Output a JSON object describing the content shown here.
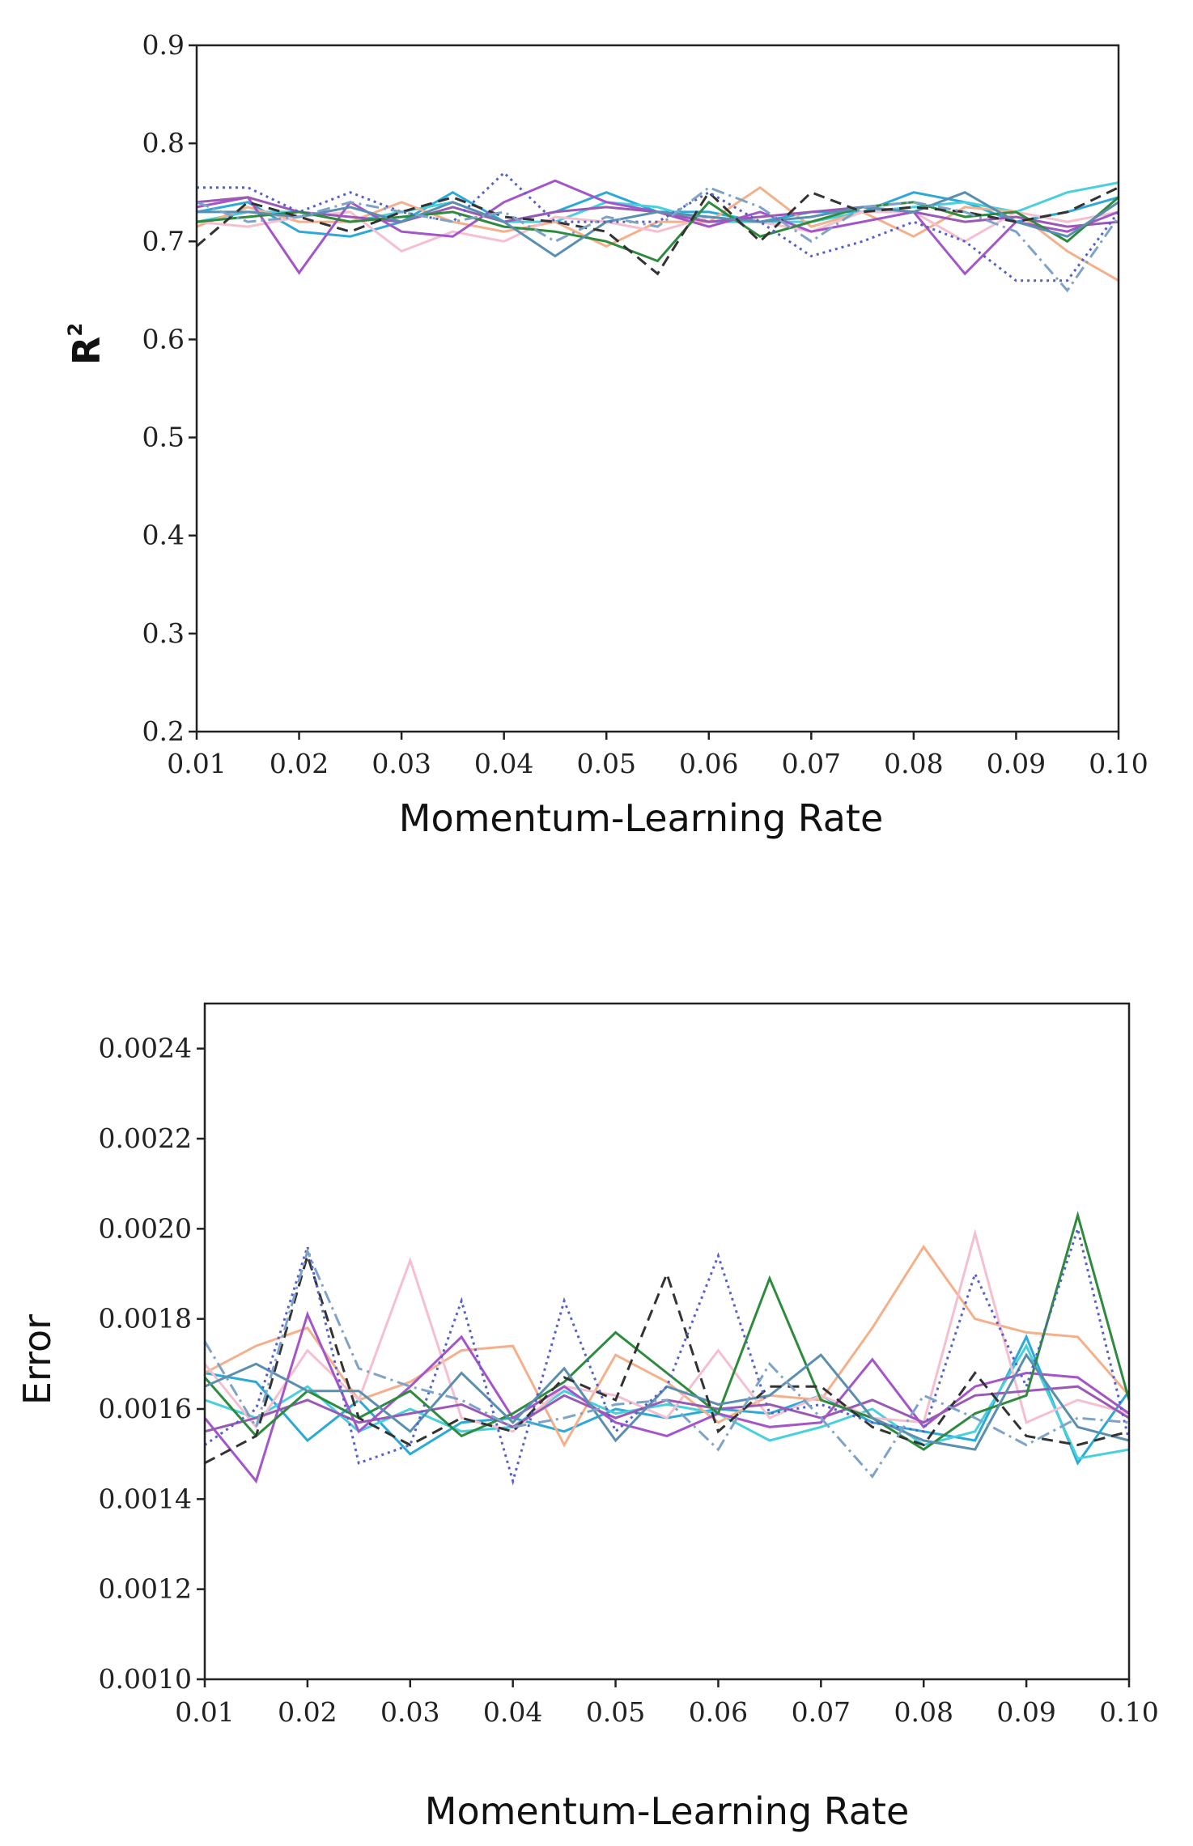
{
  "chart_data": [
    {
      "type": "line",
      "title": "",
      "xlabel": "Momentum-Learning Rate",
      "ylabel": "R",
      "ylabel_superscript": "2",
      "xlim": [
        0.01,
        0.1
      ],
      "ylim": [
        0.2,
        0.9
      ],
      "x_ticks": [
        "0.01",
        "0.02",
        "0.03",
        "0.04",
        "0.05",
        "0.06",
        "0.07",
        "0.08",
        "0.09",
        "0.10"
      ],
      "y_ticks": [
        "0.2",
        "0.3",
        "0.4",
        "0.5",
        "0.6",
        "0.7",
        "0.8",
        "0.9"
      ],
      "grid": false,
      "legend": "none",
      "x": [
        0.01,
        0.015,
        0.02,
        0.025,
        0.03,
        0.035,
        0.04,
        0.045,
        0.05,
        0.055,
        0.06,
        0.065,
        0.07,
        0.075,
        0.08,
        0.085,
        0.09,
        0.095,
        0.1
      ],
      "series": [
        {
          "color": "#2ca9d6",
          "dash": "solid",
          "values": [
            0.73,
            0.74,
            0.71,
            0.705,
            0.72,
            0.75,
            0.72,
            0.73,
            0.75,
            0.73,
            0.73,
            0.72,
            0.73,
            0.73,
            0.75,
            0.74,
            0.72,
            0.73,
            0.745
          ]
        },
        {
          "color": "#48d0dc",
          "dash": "solid",
          "values": [
            0.72,
            0.73,
            0.73,
            0.72,
            0.73,
            0.74,
            0.72,
            0.72,
            0.74,
            0.735,
            0.72,
            0.72,
            0.72,
            0.73,
            0.735,
            0.74,
            0.73,
            0.75,
            0.76
          ]
        },
        {
          "color": "#f4b08a",
          "dash": "solid",
          "values": [
            0.715,
            0.735,
            0.72,
            0.72,
            0.74,
            0.72,
            0.71,
            0.72,
            0.695,
            0.72,
            0.72,
            0.755,
            0.715,
            0.73,
            0.705,
            0.735,
            0.73,
            0.69,
            0.66
          ]
        },
        {
          "color": "#f6bfcf",
          "dash": "solid",
          "values": [
            0.72,
            0.715,
            0.725,
            0.73,
            0.69,
            0.71,
            0.7,
            0.725,
            0.72,
            0.71,
            0.725,
            0.72,
            0.71,
            0.73,
            0.73,
            0.7,
            0.73,
            0.72,
            0.73
          ]
        },
        {
          "color": "#a455c9",
          "dash": "solid",
          "values": [
            0.735,
            0.745,
            0.668,
            0.74,
            0.71,
            0.705,
            0.74,
            0.762,
            0.74,
            0.73,
            0.715,
            0.73,
            0.71,
            0.72,
            0.73,
            0.667,
            0.72,
            0.71,
            0.73
          ]
        },
        {
          "color": "#9b59b6",
          "dash": "solid",
          "values": [
            0.74,
            0.745,
            0.73,
            0.725,
            0.72,
            0.735,
            0.72,
            0.73,
            0.735,
            0.73,
            0.72,
            0.725,
            0.73,
            0.735,
            0.73,
            0.72,
            0.725,
            0.715,
            0.72
          ]
        },
        {
          "color": "#2e8b3e",
          "dash": "solid",
          "values": [
            0.72,
            0.725,
            0.73,
            0.72,
            0.725,
            0.73,
            0.715,
            0.71,
            0.7,
            0.68,
            0.74,
            0.705,
            0.72,
            0.735,
            0.74,
            0.725,
            0.73,
            0.7,
            0.745
          ]
        },
        {
          "color": "#5b8fb0",
          "dash": "solid",
          "values": [
            0.73,
            0.73,
            0.725,
            0.735,
            0.72,
            0.74,
            0.72,
            0.685,
            0.72,
            0.73,
            0.725,
            0.72,
            0.725,
            0.735,
            0.73,
            0.75,
            0.72,
            0.705,
            0.74
          ]
        },
        {
          "color": "#333333",
          "dash": "dashed",
          "values": [
            0.695,
            0.74,
            0.725,
            0.71,
            0.73,
            0.745,
            0.725,
            0.72,
            0.71,
            0.667,
            0.75,
            0.7,
            0.75,
            0.73,
            0.735,
            0.73,
            0.72,
            0.73,
            0.755
          ]
        },
        {
          "color": "#5560c8",
          "dash": "dotted",
          "values": [
            0.755,
            0.755,
            0.73,
            0.75,
            0.73,
            0.72,
            0.77,
            0.72,
            0.72,
            0.72,
            0.75,
            0.72,
            0.685,
            0.7,
            0.72,
            0.7,
            0.66,
            0.66,
            0.73
          ]
        },
        {
          "color": "#7fa3c6",
          "dash": "dashdot",
          "values": [
            0.74,
            0.72,
            0.725,
            0.74,
            0.73,
            0.72,
            0.73,
            0.7,
            0.725,
            0.715,
            0.755,
            0.735,
            0.7,
            0.735,
            0.74,
            0.73,
            0.71,
            0.65,
            0.725
          ]
        }
      ]
    },
    {
      "type": "line",
      "title": "",
      "xlabel": "Momentum-Learning Rate",
      "ylabel": "Error",
      "xlim": [
        0.01,
        0.1
      ],
      "ylim": [
        0.001,
        0.0025
      ],
      "x_ticks": [
        "0.01",
        "0.02",
        "0.03",
        "0.04",
        "0.05",
        "0.06",
        "0.07",
        "0.08",
        "0.09",
        "0.10"
      ],
      "y_ticks": [
        "0.0010",
        "0.0012",
        "0.0014",
        "0.0016",
        "0.0018",
        "0.0020",
        "0.0022",
        "0.0024"
      ],
      "grid": false,
      "legend": "none",
      "x": [
        0.01,
        0.015,
        0.02,
        0.025,
        0.03,
        0.035,
        0.04,
        0.045,
        0.05,
        0.055,
        0.06,
        0.065,
        0.07,
        0.075,
        0.08,
        0.085,
        0.09,
        0.095,
        0.1
      ],
      "series": [
        {
          "color": "#2ca9d6",
          "dash": "solid",
          "values": [
            0.00168,
            0.00166,
            0.00153,
            0.00162,
            0.0015,
            0.00157,
            0.00158,
            0.00155,
            0.0016,
            0.00158,
            0.0016,
            0.00159,
            0.00163,
            0.00157,
            0.00155,
            0.00153,
            0.00176,
            0.00148,
            0.00164
          ]
        },
        {
          "color": "#48d0dc",
          "dash": "solid",
          "values": [
            0.00162,
            0.00158,
            0.00165,
            0.00155,
            0.0016,
            0.00155,
            0.00156,
            0.00164,
            0.00159,
            0.00161,
            0.00159,
            0.00153,
            0.00156,
            0.0016,
            0.00152,
            0.00155,
            0.00174,
            0.00149,
            0.00151
          ]
        },
        {
          "color": "#f4b08a",
          "dash": "solid",
          "values": [
            0.00168,
            0.00174,
            0.00178,
            0.00162,
            0.00166,
            0.00173,
            0.00174,
            0.00152,
            0.00172,
            0.00166,
            0.00157,
            0.00163,
            0.00162,
            0.00178,
            0.00196,
            0.0018,
            0.00177,
            0.00176,
            0.00163
          ]
        },
        {
          "color": "#f6bfcf",
          "dash": "solid",
          "values": [
            0.0017,
            0.00156,
            0.00173,
            0.00162,
            0.00193,
            0.00158,
            0.00155,
            0.00165,
            0.00163,
            0.00158,
            0.00173,
            0.00158,
            0.00163,
            0.00158,
            0.00157,
            0.00199,
            0.00157,
            0.00162,
            0.00159
          ]
        },
        {
          "color": "#a455c9",
          "dash": "solid",
          "values": [
            0.00158,
            0.00144,
            0.00181,
            0.00155,
            0.00165,
            0.00176,
            0.00158,
            0.00165,
            0.00157,
            0.00154,
            0.00159,
            0.00156,
            0.00157,
            0.00171,
            0.00156,
            0.00165,
            0.00168,
            0.00167,
            0.00159
          ]
        },
        {
          "color": "#9b59b6",
          "dash": "solid",
          "values": [
            0.00155,
            0.00158,
            0.00162,
            0.00157,
            0.00159,
            0.00161,
            0.00156,
            0.00163,
            0.00158,
            0.00162,
            0.0016,
            0.00161,
            0.00158,
            0.00162,
            0.00157,
            0.00163,
            0.00164,
            0.00165,
            0.00158
          ]
        },
        {
          "color": "#2e8b3e",
          "dash": "solid",
          "values": [
            0.00167,
            0.00154,
            0.00164,
            0.00158,
            0.00164,
            0.00154,
            0.00159,
            0.00166,
            0.00177,
            0.00168,
            0.00159,
            0.00189,
            0.00162,
            0.00158,
            0.00151,
            0.00159,
            0.00163,
            0.00203,
            0.00162
          ]
        },
        {
          "color": "#5b8fb0",
          "dash": "solid",
          "values": [
            0.00165,
            0.0017,
            0.00164,
            0.00164,
            0.00155,
            0.00168,
            0.00157,
            0.00169,
            0.00153,
            0.00165,
            0.00161,
            0.00163,
            0.00172,
            0.00158,
            0.00153,
            0.00151,
            0.00172,
            0.00156,
            0.00153
          ]
        },
        {
          "color": "#333333",
          "dash": "dashed",
          "values": [
            0.00148,
            0.00154,
            0.00194,
            0.00158,
            0.00152,
            0.00158,
            0.00155,
            0.00167,
            0.00162,
            0.0019,
            0.00155,
            0.00165,
            0.00165,
            0.00156,
            0.00152,
            0.00168,
            0.00154,
            0.00152,
            0.00155
          ]
        },
        {
          "color": "#5560c8",
          "dash": "dotted",
          "values": [
            0.00152,
            0.0016,
            0.00196,
            0.00148,
            0.00152,
            0.00184,
            0.00144,
            0.00184,
            0.00155,
            0.00165,
            0.00194,
            0.00159,
            0.00161,
            0.00157,
            0.00155,
            0.0019,
            0.00165,
            0.002,
            0.00153
          ]
        },
        {
          "color": "#7fa3c6",
          "dash": "dashdot",
          "values": [
            0.00175,
            0.00156,
            0.00195,
            0.00169,
            0.00165,
            0.00162,
            0.00156,
            0.00158,
            0.00161,
            0.00162,
            0.00151,
            0.0017,
            0.00158,
            0.00145,
            0.00163,
            0.00158,
            0.00152,
            0.00158,
            0.00157
          ]
        }
      ]
    }
  ]
}
